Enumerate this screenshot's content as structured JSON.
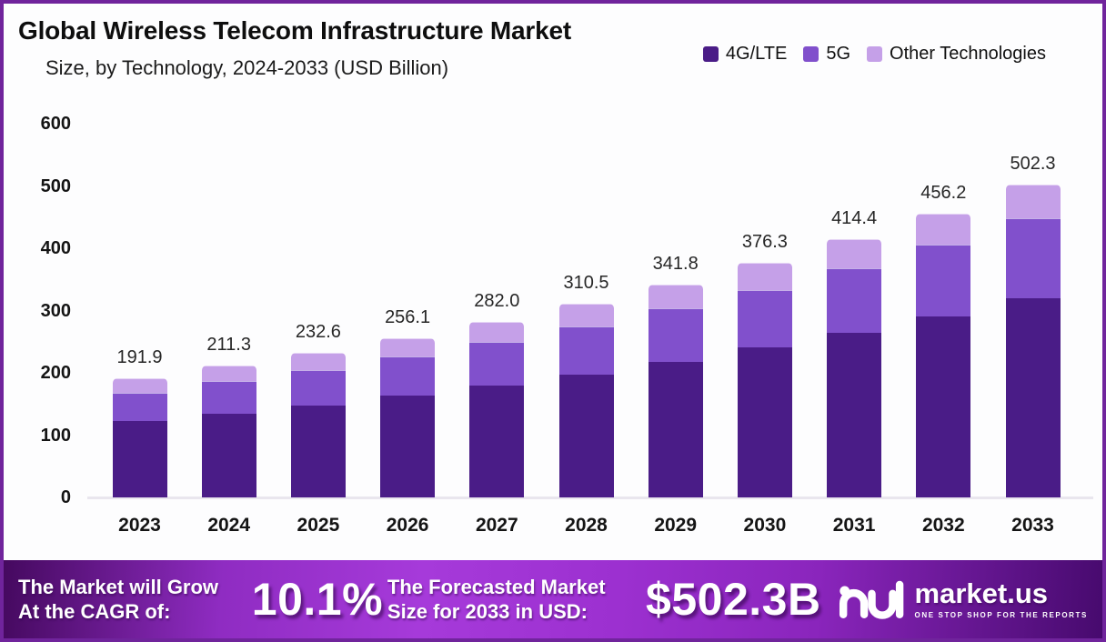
{
  "header": {
    "title": "Global Wireless Telecom Infrastructure Market",
    "subtitle": "Size, by Technology, 2024-2033 (USD Billion)"
  },
  "chart_data": {
    "type": "bar",
    "stacked": true,
    "title": "Global Wireless Telecom Infrastructure Market Size, by Technology, 2024-2033 (USD Billion)",
    "categories": [
      "2023",
      "2024",
      "2025",
      "2026",
      "2027",
      "2028",
      "2029",
      "2030",
      "2031",
      "2032",
      "2033"
    ],
    "series": [
      {
        "name": "4G/LTE",
        "color": "#4A1C87",
        "values": [
          122.0,
          135.0,
          148.0,
          163.0,
          179.5,
          197.5,
          217.5,
          241.0,
          264.0,
          290.5,
          319.4
        ]
      },
      {
        "name": "5G",
        "color": "#8150CC",
        "values": [
          46.5,
          52.0,
          57.0,
          63.0,
          69.8,
          77.5,
          85.8,
          92.0,
          103.5,
          115.5,
          129.2
        ]
      },
      {
        "name": "Other Technologies",
        "color": "#C5A0E8",
        "values": [
          23.4,
          24.3,
          27.6,
          30.1,
          32.7,
          35.5,
          38.5,
          43.3,
          46.9,
          50.2,
          53.7
        ]
      }
    ],
    "totals": [
      191.9,
      211.3,
      232.6,
      256.1,
      282.0,
      310.5,
      341.8,
      376.3,
      414.4,
      456.2,
      502.3
    ],
    "total_labels": [
      "191.9",
      "211.3",
      "232.6",
      "256.1",
      "282.0",
      "310.5",
      "341.8",
      "376.3",
      "414.4",
      "456.2",
      "502.3"
    ],
    "ylim": [
      0,
      600
    ],
    "yticks": [
      0,
      100,
      200,
      300,
      400,
      500,
      600
    ],
    "grid": false,
    "legend_position": "top-right",
    "value_labels": "totals"
  },
  "banner": {
    "grow_line1": "The Market will Grow",
    "grow_line2": "At the CAGR of:",
    "cagr_value": "10.1%",
    "forecast_line1": "The Forecasted Market",
    "forecast_line2": "Size for 2033 in USD:",
    "forecast_value": "$502.3B",
    "logo_name": "market.us",
    "logo_tagline": "ONE STOP SHOP FOR THE REPORTS"
  },
  "colors": {
    "frame_border": "#70249C",
    "background": "#FDFDFE",
    "baseline": "#E9E6EE",
    "banner_gradient_start": "#45095F",
    "banner_gradient_mid": "#A63ADA",
    "banner_gradient_end": "#470A6E",
    "text_dark": "#141414",
    "text_white": "#FFFFFF"
  }
}
